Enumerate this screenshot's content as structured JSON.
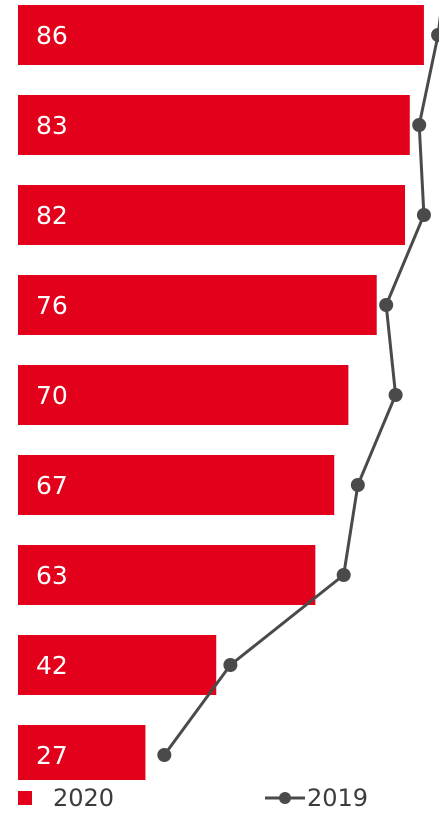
{
  "chart_data": {
    "type": "bar",
    "orientation": "horizontal",
    "series": [
      {
        "name": "2020",
        "type": "bar",
        "color": "#e3001b",
        "values": [
          86,
          83,
          82,
          76,
          70,
          67,
          63,
          42,
          27
        ]
      },
      {
        "name": "2019",
        "type": "line",
        "color": "#4a4a4a",
        "values": [
          89,
          85,
          86,
          78,
          80,
          72,
          69,
          45,
          31
        ]
      }
    ],
    "xlim": [
      0,
      90
    ],
    "grid": false,
    "legend": "bottom"
  }
}
